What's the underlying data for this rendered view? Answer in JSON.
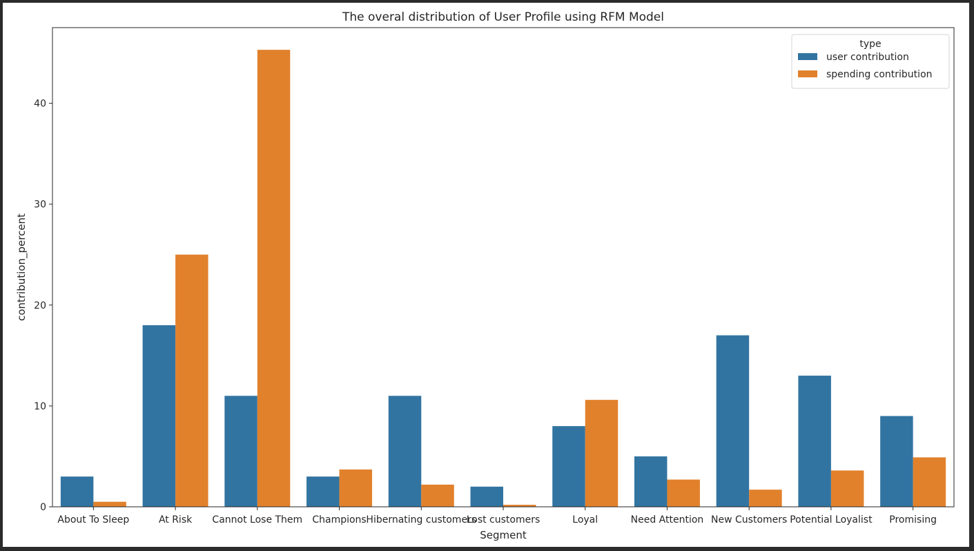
{
  "chart_data": {
    "type": "bar",
    "title": "The overal distribution of User Profile using RFM Model",
    "xlabel": "Segment",
    "ylabel": "contribution_percent",
    "ylim": [
      0,
      47.5
    ],
    "yticks": [
      0,
      10,
      20,
      30,
      40
    ],
    "grid": false,
    "legend": {
      "title": "type",
      "position": "top-right"
    },
    "categories": [
      "About To Sleep",
      "At Risk",
      "Cannot Lose Them",
      "Champions",
      "Hibernating customers",
      "Lost customers",
      "Loyal",
      "Need Attention",
      "New Customers",
      "Potential Loyalist",
      "Promising"
    ],
    "series": [
      {
        "name": "user contribution",
        "color": "#3274a1",
        "values": [
          3,
          18,
          11,
          3,
          11,
          2,
          8,
          5,
          17,
          13,
          9
        ]
      },
      {
        "name": "spending contribution",
        "color": "#e1812c",
        "values": [
          0.5,
          25,
          45.3,
          3.7,
          2.2,
          0.2,
          10.6,
          2.7,
          1.7,
          3.6,
          4.9
        ]
      }
    ]
  }
}
